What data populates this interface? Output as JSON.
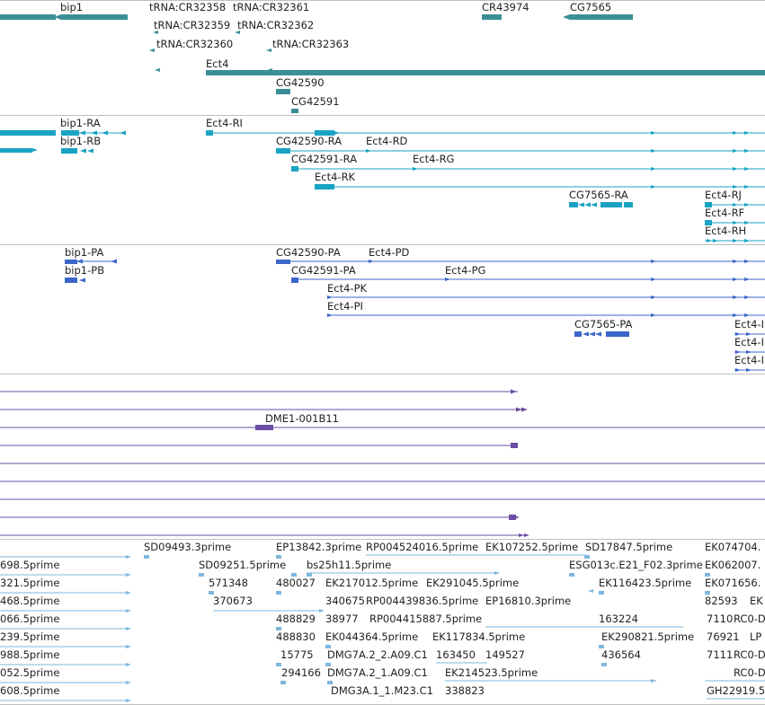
{
  "colors": {
    "gene": "#3a8f96",
    "transcript": "#1aa3c4",
    "protein": "#3b66c9",
    "clone": "#6a4fa3",
    "est": "#7fb7dd",
    "separator": "#bfbfbf"
  },
  "tracks": {
    "genes": {
      "labels": [
        "bip1",
        "tRNA:CR32358",
        "tRNA:CR32361",
        "CR43974",
        "CG7565",
        "tRNA:CR32359",
        "tRNA:CR32362",
        "tRNA:CR32360",
        "tRNA:CR32363",
        "Ect4",
        "CG42590",
        "CG42591"
      ]
    },
    "transcripts": {
      "labels": [
        "bip1-RA",
        "Ect4-RI",
        "bip1-RB",
        "CG42590-RA",
        "Ect4-RD",
        "CG42591-RA",
        "Ect4-RG",
        "Ect4-RK",
        "CG7565-RA",
        "Ect4-RJ",
        "Ect4-RF",
        "Ect4-RH"
      ]
    },
    "proteins": {
      "labels": [
        "bip1-PA",
        "CG42590-PA",
        "Ect4-PD",
        "bip1-PB",
        "CG42591-PA",
        "Ect4-PG",
        "Ect4-PK",
        "Ect4-PI",
        "CG7565-PA",
        "Ect4-I",
        "Ect4-I",
        "Ect4-I"
      ]
    },
    "clones": {
      "labels": [
        "DME1-001B11"
      ]
    },
    "ests": {
      "labels": [
        "SD09493.3prime",
        "EP13842.3prime",
        "RP004524016.5prime",
        "EK107252.5prime",
        "SD17847.5prime",
        "EK074704.",
        "698.5prime",
        "SD09251.5prime",
        "bs25h11.5prime",
        "ESG013c.E21_F02.3prime",
        "EK062007.",
        "321.5prime",
        "571348",
        "480027",
        "EK217012.5prime",
        "EK291045.5prime",
        "EK116423.5prime",
        "EK071656.",
        "468.5prime",
        "370673",
        "340675",
        "RP004439836.5prime",
        "EP16810.3prime",
        "82593",
        "EK",
        "066.5prime",
        "488829",
        "38977",
        "RP004415887.5prime",
        "163224",
        "7110",
        "RC0-D",
        "239.5prime",
        "488830",
        "EK044364.5prime",
        "EK117834.5prime",
        "EK290821.5prime",
        "76921",
        "LP",
        "988.5prime",
        "15775",
        "DMG7A.2_2.A09.C1",
        "163450",
        "149527",
        "436564",
        "7111",
        "RC0-D",
        "052.5prime",
        "294166",
        "DMG7A.2_1.A09.C1",
        "EK214523.5prime",
        "RC0-D",
        "608.5prime",
        "DMG3A.1_1.M23.C1",
        "338823",
        "GH22919.5"
      ]
    }
  }
}
